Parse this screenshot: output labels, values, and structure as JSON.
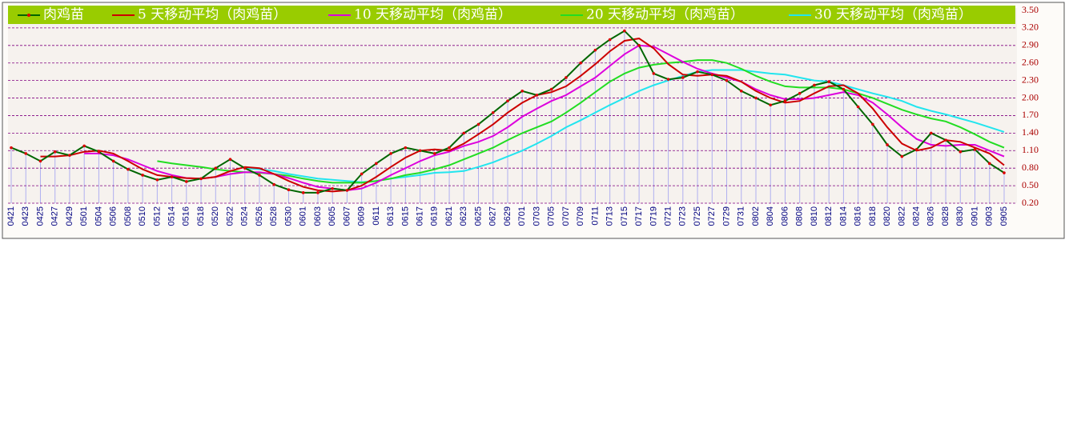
{
  "chart_data": {
    "type": "line",
    "categories": [
      "0421",
      "0423",
      "0425",
      "0427",
      "0429",
      "0501",
      "0504",
      "0506",
      "0508",
      "0510",
      "0512",
      "0514",
      "0516",
      "0518",
      "0520",
      "0522",
      "0524",
      "0526",
      "0528",
      "0530",
      "0601",
      "0603",
      "0605",
      "0607",
      "0609",
      "0611",
      "0613",
      "0615",
      "0617",
      "0619",
      "0621",
      "0623",
      "0625",
      "0627",
      "0629",
      "0701",
      "0703",
      "0705",
      "0707",
      "0709",
      "0711",
      "0713",
      "0715",
      "0717",
      "0719",
      "0721",
      "0723",
      "0725",
      "0727",
      "0729",
      "0731",
      "0802",
      "0804",
      "0806",
      "0808",
      "0810",
      "0812",
      "0814",
      "0816",
      "0818",
      "0820",
      "0822",
      "0824",
      "0826",
      "0828",
      "0830",
      "0901",
      "0903",
      "0905"
    ],
    "series": [
      {
        "name": "肉鸡苗",
        "color": "#006600",
        "marker_color": "#dd0000",
        "values": [
          1.15,
          1.05,
          0.92,
          1.08,
          1.02,
          1.18,
          1.08,
          0.92,
          0.78,
          0.68,
          0.6,
          0.65,
          0.57,
          0.62,
          0.8,
          0.95,
          0.8,
          0.68,
          0.52,
          0.43,
          0.38,
          0.38,
          0.45,
          0.42,
          0.7,
          0.88,
          1.05,
          1.15,
          1.1,
          1.05,
          1.15,
          1.4,
          1.55,
          1.75,
          1.95,
          2.12,
          2.05,
          2.15,
          2.35,
          2.6,
          2.82,
          3.0,
          3.15,
          2.9,
          2.42,
          2.32,
          2.35,
          2.45,
          2.4,
          2.3,
          2.12,
          2.0,
          1.88,
          1.95,
          2.08,
          2.22,
          2.28,
          2.15,
          1.85,
          1.55,
          1.2,
          1.0,
          1.12,
          1.4,
          1.28,
          1.08,
          1.12,
          0.88,
          0.72
        ]
      },
      {
        "name": "5 天移动平均（肉鸡苗）",
        "color": "#cc0000",
        "values": [
          null,
          null,
          1.0,
          1.0,
          1.02,
          1.08,
          1.1,
          1.05,
          0.92,
          0.78,
          0.68,
          0.65,
          0.63,
          0.62,
          0.65,
          0.75,
          0.82,
          0.8,
          0.7,
          0.58,
          0.48,
          0.42,
          0.4,
          0.42,
          0.5,
          0.65,
          0.82,
          0.98,
          1.1,
          1.12,
          1.1,
          1.22,
          1.38,
          1.55,
          1.75,
          1.92,
          2.05,
          2.1,
          2.2,
          2.38,
          2.58,
          2.8,
          2.98,
          3.02,
          2.85,
          2.58,
          2.4,
          2.38,
          2.4,
          2.38,
          2.28,
          2.12,
          2.0,
          1.92,
          1.95,
          2.08,
          2.2,
          2.22,
          2.08,
          1.82,
          1.5,
          1.22,
          1.1,
          1.15,
          1.28,
          1.25,
          1.15,
          1.05,
          0.85
        ]
      },
      {
        "name": "10 天移动平均（肉鸡苗）",
        "color": "#dd00dd",
        "values": [
          null,
          null,
          null,
          null,
          null,
          1.05,
          1.05,
          1.02,
          0.95,
          0.85,
          0.75,
          0.68,
          0.63,
          0.62,
          0.65,
          0.7,
          0.73,
          0.73,
          0.7,
          0.63,
          0.55,
          0.48,
          0.45,
          0.42,
          0.45,
          0.55,
          0.68,
          0.8,
          0.92,
          1.02,
          1.08,
          1.18,
          1.25,
          1.35,
          1.5,
          1.68,
          1.82,
          1.95,
          2.05,
          2.2,
          2.35,
          2.55,
          2.75,
          2.9,
          2.88,
          2.75,
          2.62,
          2.5,
          2.42,
          2.35,
          2.28,
          2.15,
          2.05,
          1.98,
          1.98,
          2.0,
          2.05,
          2.1,
          2.05,
          1.92,
          1.72,
          1.5,
          1.3,
          1.2,
          1.18,
          1.2,
          1.2,
          1.1,
          1.0
        ]
      },
      {
        "name": "20 天移动平均（肉鸡苗）",
        "color": "#22dd22",
        "values": [
          null,
          null,
          null,
          null,
          null,
          null,
          null,
          null,
          null,
          null,
          0.92,
          0.88,
          0.85,
          0.82,
          0.78,
          0.75,
          0.73,
          0.72,
          0.7,
          0.67,
          0.62,
          0.58,
          0.55,
          0.55,
          0.55,
          0.58,
          0.62,
          0.68,
          0.72,
          0.78,
          0.85,
          0.95,
          1.05,
          1.15,
          1.28,
          1.4,
          1.5,
          1.6,
          1.75,
          1.92,
          2.1,
          2.28,
          2.42,
          2.52,
          2.57,
          2.6,
          2.62,
          2.65,
          2.65,
          2.6,
          2.5,
          2.38,
          2.28,
          2.2,
          2.18,
          2.18,
          2.18,
          2.15,
          2.08,
          2.0,
          1.9,
          1.8,
          1.72,
          1.65,
          1.6,
          1.5,
          1.38,
          1.25,
          1.15
        ]
      },
      {
        "name": "30 天移动平均（肉鸡苗）",
        "color": "#22e5ee",
        "values": [
          null,
          null,
          null,
          null,
          null,
          null,
          null,
          null,
          null,
          null,
          null,
          null,
          null,
          null,
          null,
          null,
          0.8,
          0.78,
          0.75,
          0.7,
          0.66,
          0.62,
          0.6,
          0.58,
          0.56,
          0.58,
          0.62,
          0.65,
          0.68,
          0.72,
          0.73,
          0.75,
          0.82,
          0.9,
          1.0,
          1.1,
          1.22,
          1.35,
          1.5,
          1.62,
          1.75,
          1.88,
          2.0,
          2.12,
          2.22,
          2.3,
          2.38,
          2.45,
          2.48,
          2.48,
          2.48,
          2.45,
          2.42,
          2.4,
          2.35,
          2.3,
          2.28,
          2.22,
          2.15,
          2.08,
          2.02,
          1.95,
          1.85,
          1.78,
          1.72,
          1.65,
          1.58,
          1.5,
          1.42
        ]
      }
    ],
    "ylim": [
      0.2,
      3.5
    ],
    "yticks": [
      {
        "value": 0.2,
        "label": "0.20"
      },
      {
        "value": 0.5,
        "label": "0.50"
      },
      {
        "value": 0.8,
        "label": "0.80"
      },
      {
        "value": 1.1,
        "label": "1.10"
      },
      {
        "value": 1.4,
        "label": "1.40"
      },
      {
        "value": 1.7,
        "label": "1.70"
      },
      {
        "value": 2,
        "label": "2.00"
      },
      {
        "value": 2.3,
        "label": "2.30"
      },
      {
        "value": 2.6,
        "label": "2.60"
      },
      {
        "value": 2.9,
        "label": "2.90"
      },
      {
        "value": 3.2,
        "label": "3.20"
      },
      {
        "value": 3.5,
        "label": "3.50"
      }
    ],
    "grid": true,
    "grid_color": "#800080",
    "drop_line_color": "#b0b0f0",
    "legend_color": "#99cc00"
  }
}
